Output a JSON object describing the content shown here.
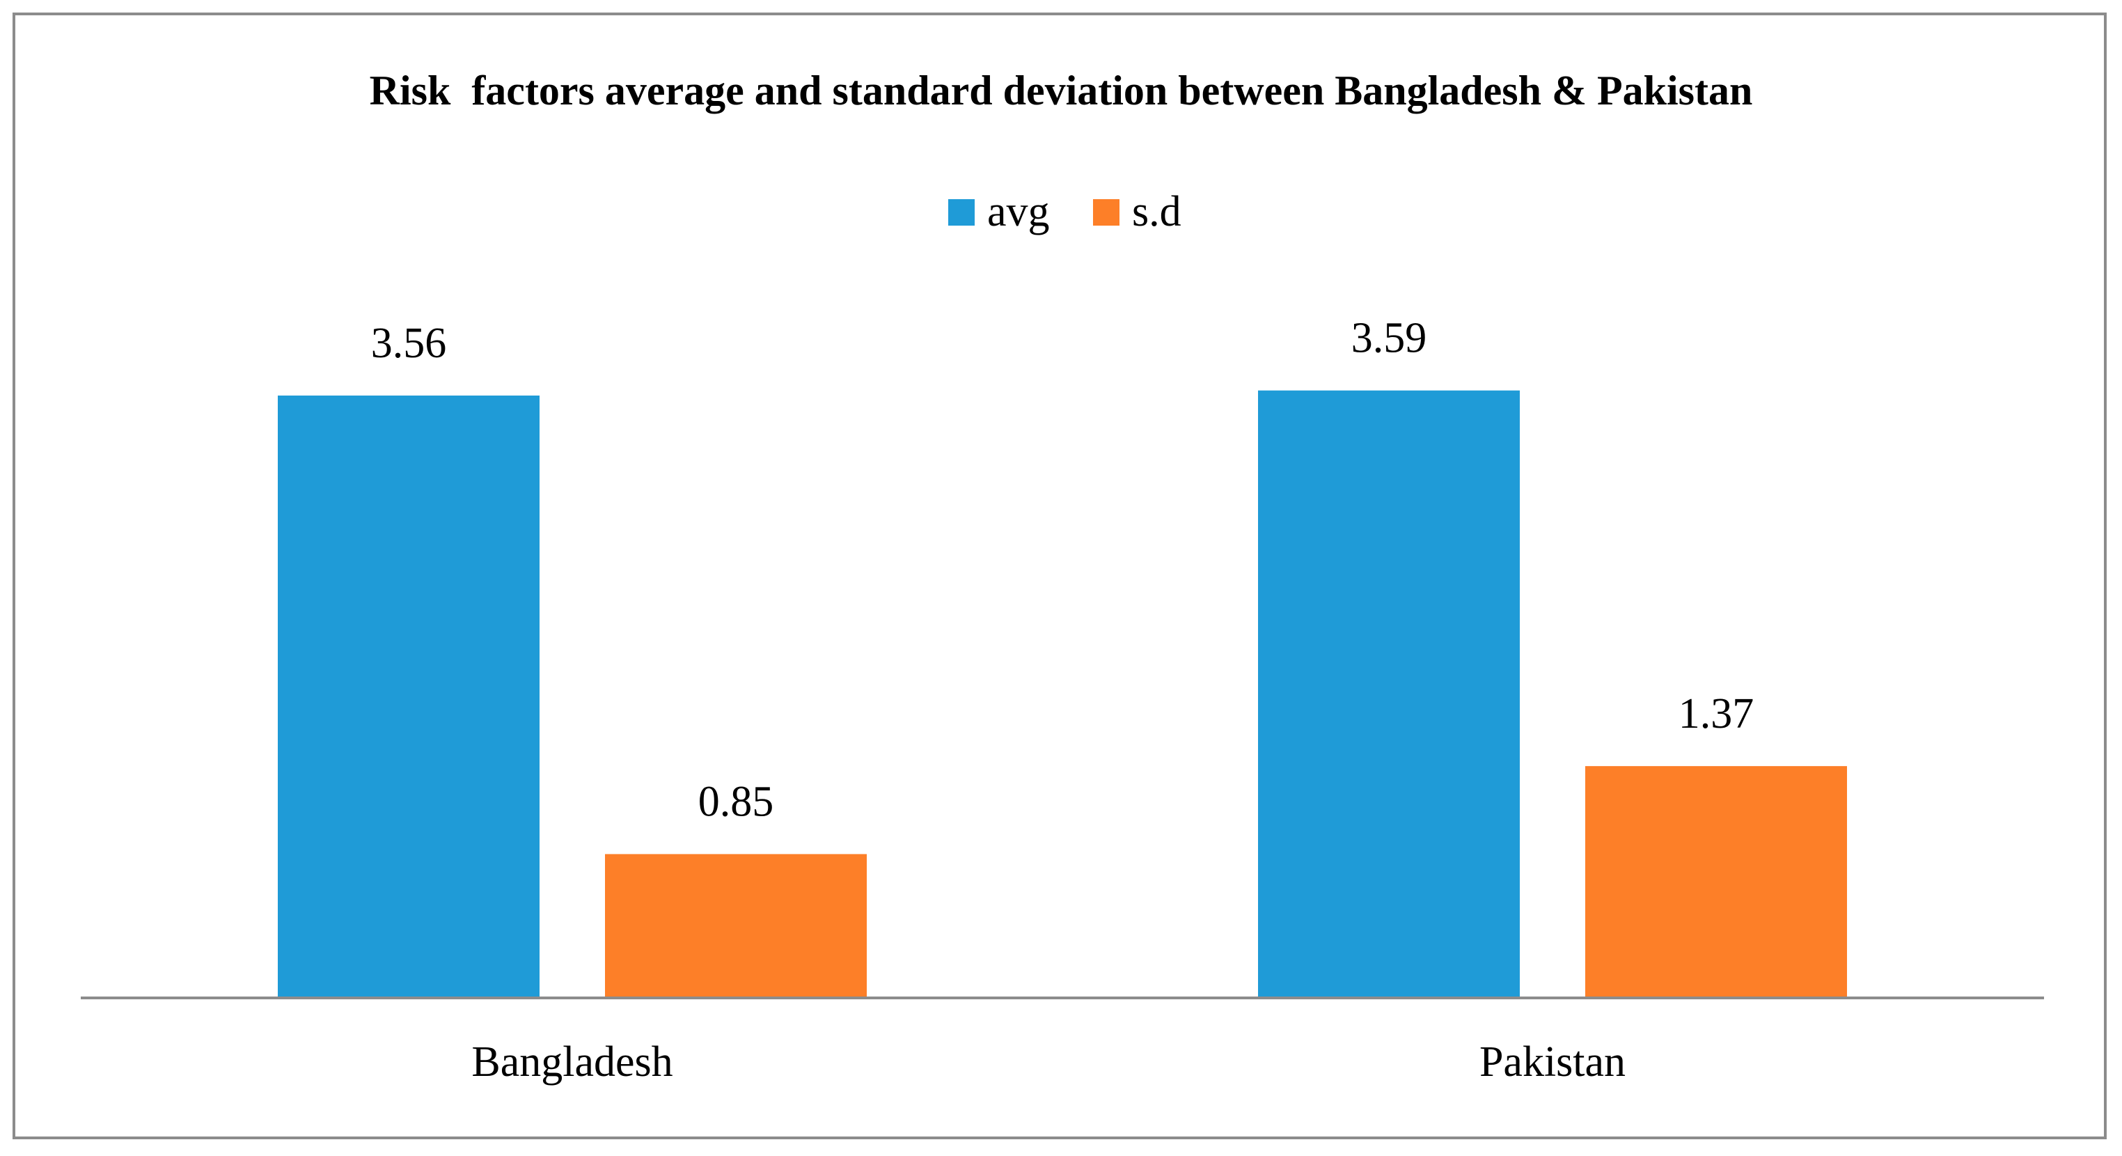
{
  "chart_data": {
    "type": "bar",
    "title": "Risk  factors average and standard deviation between Bangladesh & Pakistan",
    "categories": [
      "Bangladesh",
      "Pakistan"
    ],
    "series": [
      {
        "name": "avg",
        "color": "#1f9bd7",
        "values": [
          3.56,
          3.59
        ],
        "labels": [
          "3.56",
          "3.59"
        ]
      },
      {
        "name": "s.d",
        "color": "#fd7f28",
        "values": [
          0.85,
          1.37
        ],
        "labels": [
          "0.85",
          "1.37"
        ]
      }
    ],
    "xlabel": "",
    "ylabel": "",
    "ylim": [
      0,
      3.56
    ],
    "grid": false,
    "legend_position": "top-center"
  }
}
